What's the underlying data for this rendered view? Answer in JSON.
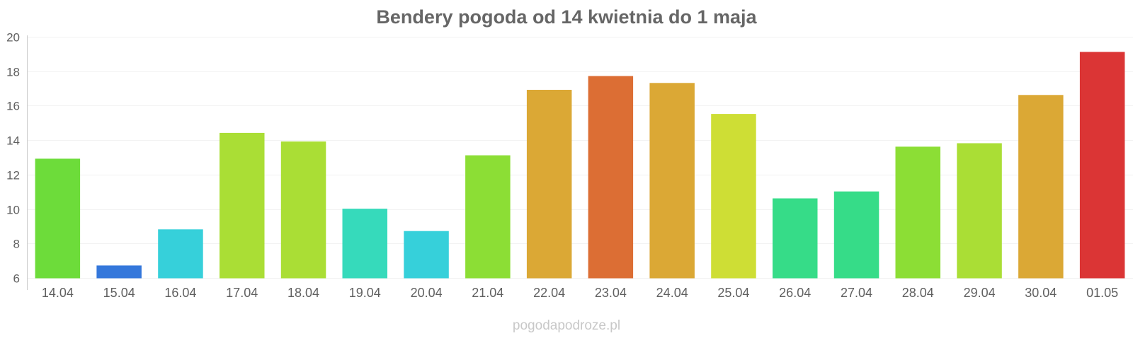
{
  "chart_data": {
    "type": "bar",
    "title": "Bendery pogoda od 14 kwietnia do 1 maja",
    "xlabel": "",
    "ylabel": "",
    "ylim": [
      6,
      20
    ],
    "yticks": [
      6,
      8,
      10,
      12,
      14,
      16,
      18,
      20
    ],
    "grid": true,
    "legend": "none",
    "categories": [
      "14.04",
      "15.04",
      "16.04",
      "17.04",
      "18.04",
      "19.04",
      "20.04",
      "21.04",
      "22.04",
      "23.04",
      "24.04",
      "25.04",
      "26.04",
      "27.04",
      "28.04",
      "29.04",
      "30.04",
      "01.05"
    ],
    "values": [
      12.9,
      6.7,
      8.8,
      14.4,
      13.9,
      10.0,
      8.7,
      13.1,
      16.9,
      17.7,
      17.3,
      15.5,
      10.6,
      11.0,
      13.6,
      13.8,
      16.6,
      19.1
    ],
    "colors": [
      "#6ddc3a",
      "#3477db",
      "#36d0da",
      "#aade35",
      "#aade35",
      "#36dabb",
      "#36d0da",
      "#8cde35",
      "#dba835",
      "#dc6e34",
      "#dba835",
      "#cede35",
      "#36dc88",
      "#36dc88",
      "#8cde35",
      "#aade35",
      "#dba835",
      "#db3535"
    ]
  },
  "footer": {
    "credit": "pogodapodroze.pl"
  }
}
